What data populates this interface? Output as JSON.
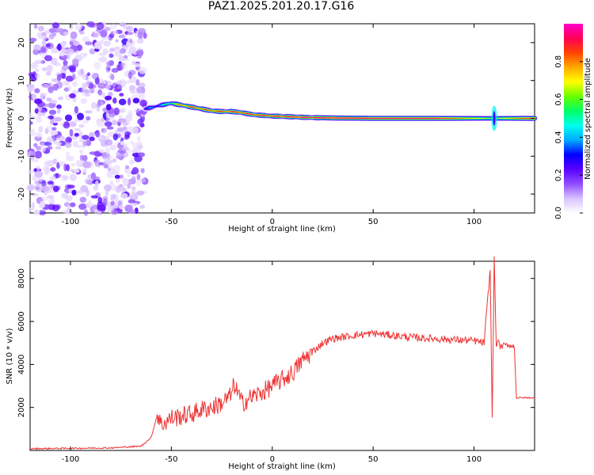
{
  "title": "PAZ1.2025.201.20.17.G16",
  "chart_data": [
    {
      "type": "heatmap",
      "xlabel": "Height of straight line (km)",
      "ylabel": "Frequency (Hz)",
      "xlim": [
        -120,
        130
      ],
      "ylim": [
        -25,
        25
      ],
      "xticks": [
        -100,
        -50,
        0,
        50,
        100
      ],
      "yticks": [
        -20,
        -10,
        0,
        10,
        20
      ],
      "colorbar": {
        "label": "Normalized spectral amplitude",
        "range": [
          0,
          1
        ],
        "ticks": [
          "0.0",
          "0.2",
          "0.4",
          "0.6",
          "0.8"
        ],
        "colors": [
          "#ffffff",
          "#d9c2ff",
          "#8f4dff",
          "#5a00ff",
          "#0000ff",
          "#00aaff",
          "#00ffee",
          "#00ff66",
          "#66ff00",
          "#ffff00",
          "#ffaa00",
          "#ff4400",
          "#ff0055",
          "#ff00cc"
        ]
      },
      "noise_region_x": [
        -120,
        -63
      ],
      "ridge": {
        "x": [
          -63,
          -55,
          -50,
          -45,
          -40,
          -35,
          -30,
          -25,
          -20,
          -15,
          -10,
          -5,
          0,
          5,
          10,
          15,
          20,
          30,
          50,
          80,
          110,
          130
        ],
        "freq": [
          2.5,
          3.5,
          4.0,
          3.5,
          3.0,
          2.5,
          2.0,
          1.8,
          1.8,
          1.5,
          1.0,
          0.8,
          0.6,
          0.5,
          0.4,
          0.3,
          0.2,
          0.1,
          0.0,
          0.0,
          0.0,
          0.0
        ],
        "amplitude": [
          0.3,
          0.4,
          0.6,
          0.8,
          0.85,
          0.85,
          0.85,
          0.85,
          0.9,
          0.9,
          0.9,
          0.9,
          0.9,
          0.92,
          0.92,
          0.95,
          0.95,
          0.95,
          0.95,
          0.95,
          0.6,
          0.95
        ]
      }
    },
    {
      "type": "line",
      "xlabel": "Height of straight line (km)",
      "ylabel": "SNR (10 * v/v)",
      "xlim": [
        -120,
        130
      ],
      "ylim": [
        0,
        8800
      ],
      "xticks": [
        -100,
        -50,
        0,
        50,
        100
      ],
      "yticks": [
        2000,
        4000,
        6000,
        8000
      ],
      "line_color": "#ee3333",
      "series": [
        {
          "x": [
            -120,
            -100,
            -80,
            -65,
            -60,
            -58,
            -57,
            -55,
            -50,
            -45,
            -40,
            -35,
            -30,
            -25,
            -20,
            -19,
            -15,
            -10,
            -5,
            0,
            5,
            10,
            15,
            20,
            25,
            30,
            40,
            50,
            60,
            70,
            80,
            90,
            100,
            105,
            108,
            109,
            110,
            111,
            112,
            113,
            115,
            118,
            120,
            121,
            125,
            130
          ],
          "y": [
            80,
            100,
            120,
            200,
            600,
            1300,
            1700,
            1200,
            1500,
            1600,
            1700,
            1900,
            2000,
            2200,
            2600,
            3100,
            2200,
            2500,
            2700,
            3000,
            3300,
            3600,
            4200,
            4600,
            5000,
            5200,
            5350,
            5450,
            5350,
            5250,
            5200,
            5150,
            5100,
            5000,
            8400,
            1500,
            9000,
            4800,
            5200,
            4800,
            4900,
            4900,
            4800,
            2450,
            2450,
            2450
          ]
        }
      ]
    }
  ]
}
